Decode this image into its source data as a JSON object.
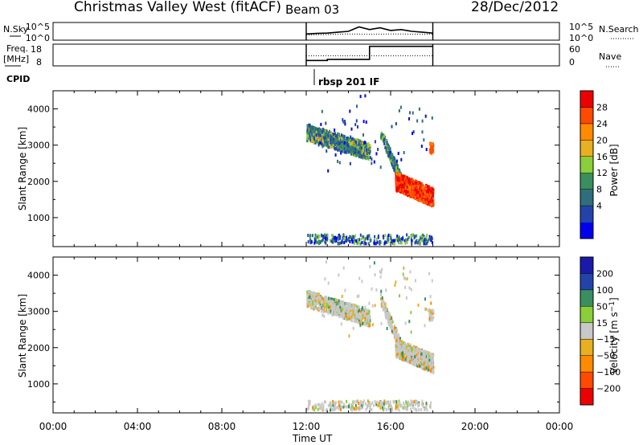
{
  "header": {
    "title": "Christmas Valley West (fitACF)",
    "beam": "Beam 03",
    "date": "28/Dec/2012"
  },
  "colors": {
    "power": [
      "#0000ee",
      "#2244aa",
      "#2f6e7c",
      "#3a8f5e",
      "#8acf3a",
      "#e8b020",
      "#ff8a00",
      "#ff4a00",
      "#ee0000"
    ],
    "velocity": [
      "#ee0000",
      "#ff4a00",
      "#ff8a00",
      "#e8b020",
      "#c8c8c8",
      "#8acf3a",
      "#3a8f5e",
      "#2244aa",
      "#1a1aaa"
    ]
  },
  "chart_data": [
    {
      "type": "line",
      "panel": "noise",
      "left_label": "N.Sky",
      "right_label": "N.Search",
      "yticks_left": [
        "10^5",
        "10^0"
      ],
      "yticks_right": [
        "10^5",
        "10^0"
      ],
      "series": [
        {
          "style": "solid",
          "points": [
            [
              12,
              0.35
            ],
            [
              12.5,
              0.38
            ],
            [
              13,
              0.4
            ],
            [
              13.5,
              0.45
            ],
            [
              14,
              0.5
            ],
            [
              14.5,
              0.75
            ],
            [
              15,
              0.6
            ],
            [
              15.5,
              0.7
            ],
            [
              16,
              0.55
            ],
            [
              16.5,
              0.6
            ],
            [
              17,
              0.5
            ],
            [
              17.5,
              0.45
            ],
            [
              18,
              0.4
            ]
          ]
        },
        {
          "style": "dotted",
          "points": [
            [
              12,
              0.3
            ],
            [
              13,
              0.32
            ],
            [
              14,
              0.35
            ],
            [
              15,
              0.33
            ],
            [
              16,
              0.35
            ],
            [
              17,
              0.34
            ],
            [
              18,
              0.33
            ]
          ]
        }
      ]
    },
    {
      "type": "line",
      "panel": "frequency",
      "left_label": "Freq.\n[MHz]",
      "right_label": "Nave",
      "yticks_left": [
        "18",
        "8"
      ],
      "yticks_right": [
        "60",
        "0"
      ],
      "series": [
        {
          "name": "Freq",
          "style": "solid",
          "points": [
            [
              12,
              10.5
            ],
            [
              13,
              10.5
            ],
            [
              13,
              11
            ],
            [
              15,
              11
            ],
            [
              15,
              17
            ],
            [
              18,
              17
            ]
          ]
        },
        {
          "name": "Nave",
          "style": "dotted",
          "points": [
            [
              12,
              28
            ],
            [
              18,
              28
            ]
          ]
        }
      ]
    },
    {
      "type": "heatmap",
      "panel": "power",
      "ylabel": "Slant Range [km]",
      "colorbar_label": "Power [dB]",
      "colorbar_ticks": [
        "28",
        "24",
        "20",
        "16",
        "12",
        "8",
        "4"
      ],
      "ylim": [
        200,
        4500
      ],
      "yticks": [
        1000,
        2000,
        3000,
        4000
      ]
    },
    {
      "type": "heatmap",
      "panel": "velocity",
      "ylabel": "Slant Range [km]",
      "colorbar_label": "Velocity [m s⁻¹]",
      "colorbar_ticks": [
        "200",
        "100",
        "50",
        "15",
        "−15",
        "−50",
        "−100",
        "−200"
      ],
      "ylim": [
        200,
        4500
      ],
      "yticks": [
        1000,
        2000,
        3000,
        4000
      ]
    }
  ],
  "cpid": {
    "label": "CPID",
    "annotation": "rbsp 201 IF"
  },
  "time_axis": {
    "xlabel": "Time UT",
    "xlim": [
      0,
      24
    ],
    "ticks": [
      "00:00",
      "04:00",
      "08:00",
      "12:00",
      "16:00",
      "20:00",
      "00:00"
    ]
  }
}
